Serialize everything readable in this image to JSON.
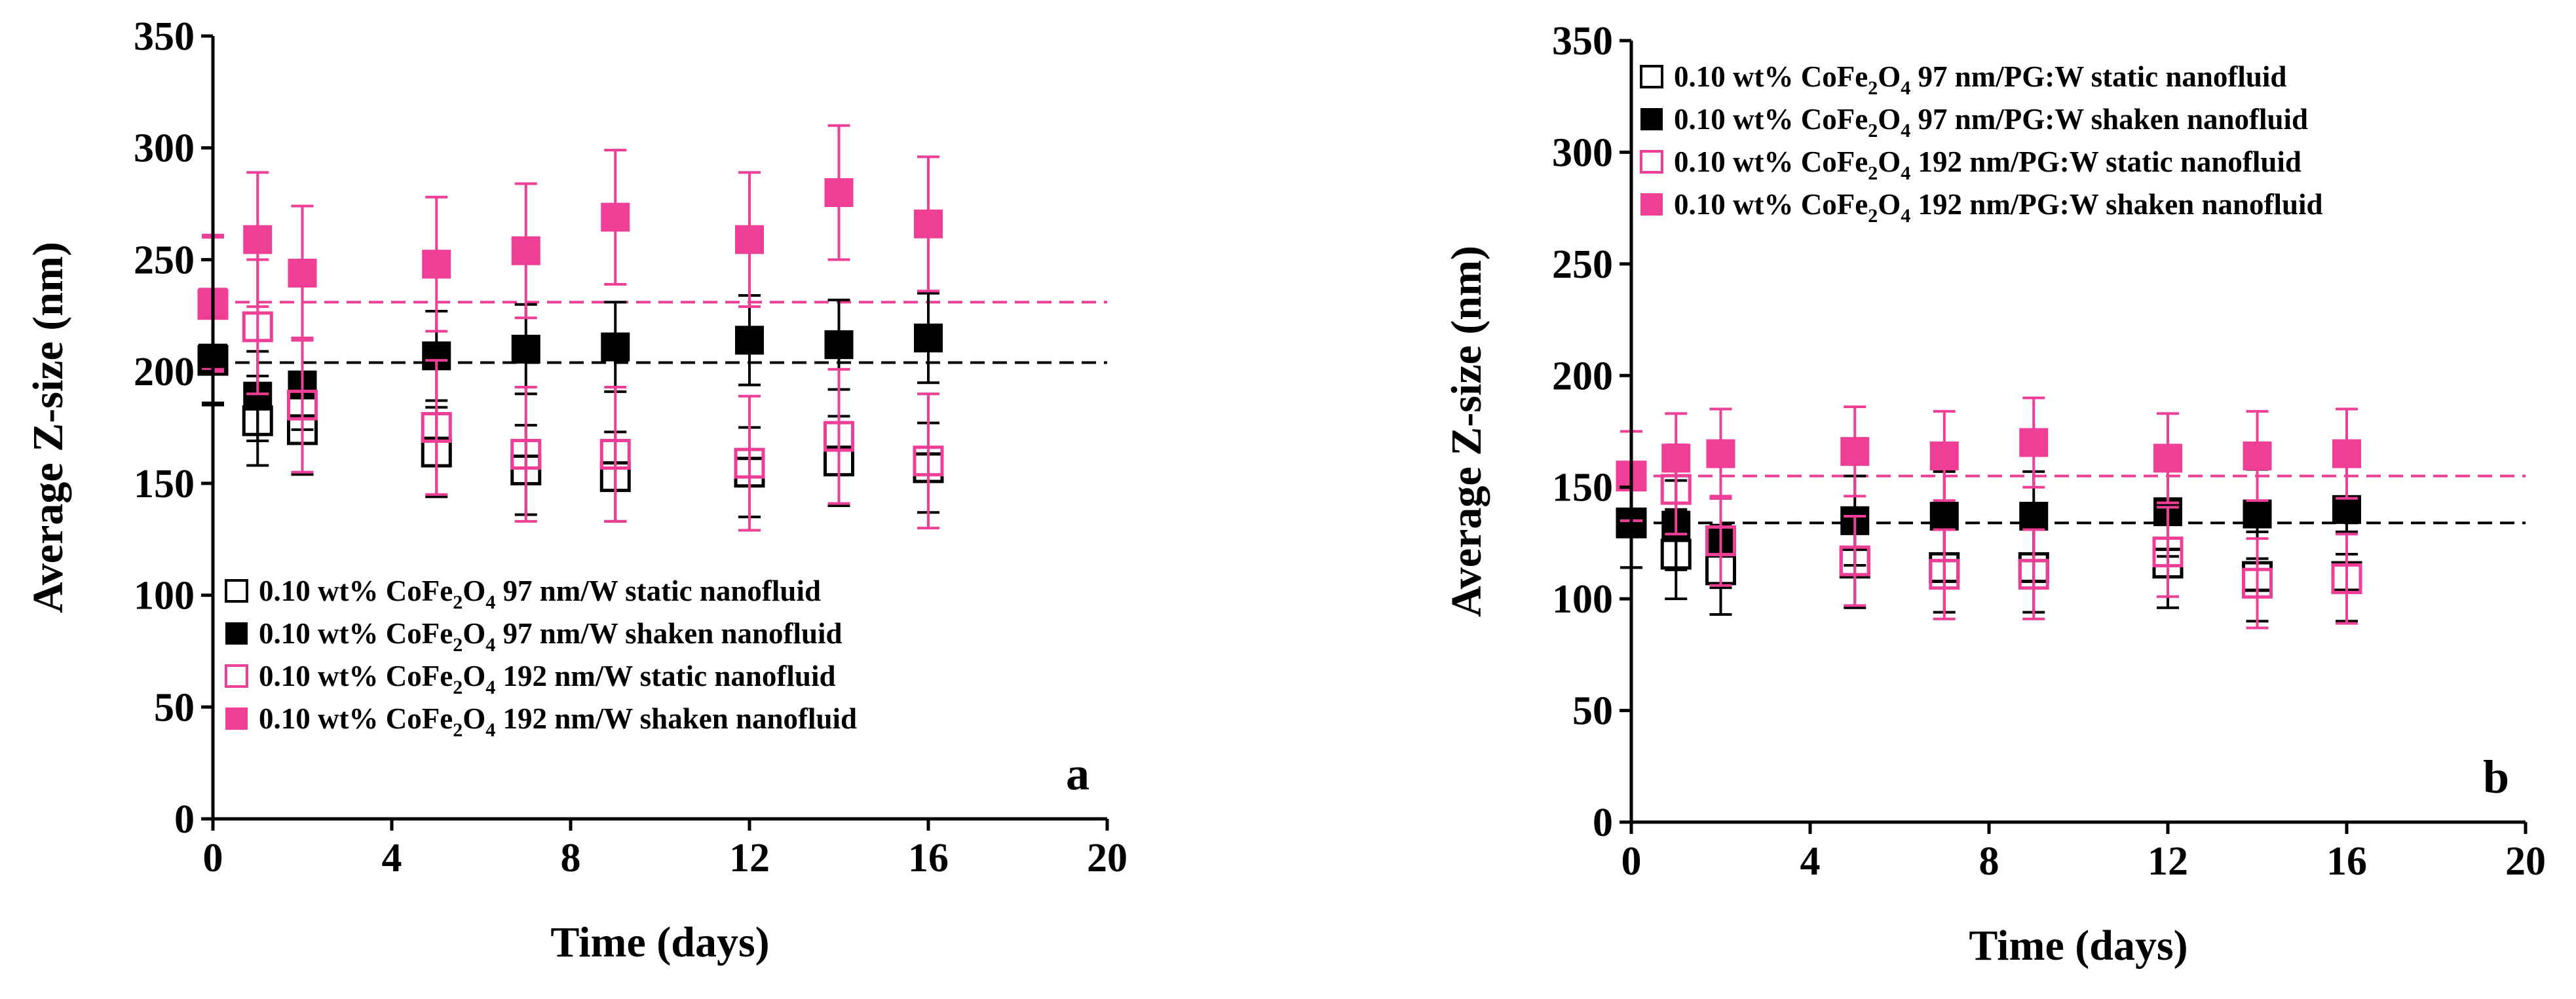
{
  "chart_data": [
    {
      "type": "scatter",
      "panel_label": "a",
      "xlabel": "Time (days)",
      "ylabel": "Average Z-size (nm)",
      "xlim": [
        0,
        20
      ],
      "ylim": [
        0,
        350
      ],
      "xticks": [
        0,
        4,
        8,
        12,
        16,
        20
      ],
      "yticks": [
        0,
        50,
        100,
        150,
        200,
        250,
        300,
        350
      ],
      "xtick_labels": [
        "0",
        "4",
        "8",
        "12",
        "16",
        "20"
      ],
      "ytick_labels": [
        "0",
        "50",
        "100",
        "150",
        "200",
        "250",
        "300",
        "350"
      ],
      "legend_position": "bottom-left",
      "reference_lines": [
        {
          "y": 204,
          "color": "#000000",
          "style": "dashed"
        },
        {
          "y": 231,
          "color": "#ee3e96",
          "style": "dashed"
        }
      ],
      "series": [
        {
          "name": "0.10 wt% CoFe2O4 97 nm/W static nanofluid",
          "legend": {
            "pre": "0.10 wt% CoFe",
            "sub1": "2",
            "mid": "O",
            "sub2": "4",
            "post": " 97 nm/W static nanofluid"
          },
          "color": "#000000",
          "marker": "open-square",
          "x": [
            0,
            1,
            2,
            5,
            7,
            9,
            12,
            14,
            16
          ],
          "y": [
            205,
            178,
            174,
            164,
            156,
            153,
            155,
            160,
            157
          ],
          "err": [
            20,
            20,
            20,
            20,
            20,
            20,
            20,
            20,
            20
          ]
        },
        {
          "name": "0.10 wt% CoFe2O4 97 nm/W shaken nanofluid",
          "legend": {
            "pre": "0.10 wt% CoFe",
            "sub1": "2",
            "mid": "O",
            "sub2": "4",
            "post": " 97 nm/W shaken nanofluid"
          },
          "color": "#000000",
          "marker": "filled-square",
          "x": [
            0,
            1,
            2,
            5,
            7,
            9,
            12,
            14,
            16
          ],
          "y": [
            206,
            189,
            194,
            207,
            210,
            211,
            214,
            212,
            215
          ],
          "err": [
            20,
            20,
            20,
            20,
            20,
            20,
            20,
            20,
            20
          ]
        },
        {
          "name": "0.10 wt% CoFe2O4 192 nm/W static nanofluid",
          "legend": {
            "pre": "0.10 wt% CoFe",
            "sub1": "2",
            "mid": "O",
            "sub2": "4",
            "post": " 192 nm/W static nanofluid"
          },
          "color": "#ee3e96",
          "marker": "open-square",
          "x": [
            0,
            1,
            2,
            5,
            7,
            9,
            12,
            14,
            16
          ],
          "y": [
            230,
            220,
            185,
            175,
            163,
            163,
            159,
            171,
            160
          ],
          "err": [
            30,
            30,
            30,
            30,
            30,
            30,
            30,
            30,
            30
          ]
        },
        {
          "name": "0.10 wt% CoFe2O4 192 nm/W shaken nanofluid",
          "legend": {
            "pre": "0.10 wt% CoFe",
            "sub1": "2",
            "mid": "O",
            "sub2": "4",
            "post": " 192 nm/W shaken nanofluid"
          },
          "color": "#ee3e96",
          "marker": "filled-square",
          "x": [
            0,
            1,
            2,
            5,
            7,
            9,
            12,
            14,
            16
          ],
          "y": [
            231,
            259,
            244,
            248,
            254,
            269,
            259,
            280,
            266
          ],
          "err": [
            30,
            30,
            30,
            30,
            30,
            30,
            30,
            30,
            30
          ]
        }
      ]
    },
    {
      "type": "scatter",
      "panel_label": "b",
      "xlabel": "Time (days)",
      "ylabel": "Average Z-size (nm)",
      "xlim": [
        0,
        20
      ],
      "ylim": [
        0,
        350
      ],
      "xticks": [
        0,
        4,
        8,
        12,
        16,
        20
      ],
      "yticks": [
        0,
        50,
        100,
        150,
        200,
        250,
        300,
        350
      ],
      "xtick_labels": [
        "0",
        "4",
        "8",
        "12",
        "16",
        "20"
      ],
      "ytick_labels": [
        "0",
        "50",
        "100",
        "150",
        "200",
        "250",
        "300",
        "350"
      ],
      "legend_position": "top-left",
      "reference_lines": [
        {
          "y": 134,
          "color": "#000000",
          "style": "dashed"
        },
        {
          "y": 155,
          "color": "#ee3e96",
          "style": "dashed"
        }
      ],
      "series": [
        {
          "name": "0.10 wt% CoFe2O4 97 nm/PG:W static nanofluid",
          "legend": {
            "pre": "0.10 wt% CoFe",
            "sub1": "2",
            "mid": "O",
            "sub2": "4",
            "post": " 97 nm/PG:W static nanofluid"
          },
          "color": "#000000",
          "marker": "open-square",
          "x": [
            0,
            1,
            2,
            5,
            7,
            9,
            12,
            14,
            16
          ],
          "y": [
            134,
            120,
            113,
            116,
            114,
            114,
            116,
            110,
            110
          ],
          "err": [
            20,
            20,
            20,
            20,
            20,
            20,
            20,
            20,
            20
          ]
        },
        {
          "name": "0.10 wt% CoFe2O4 97 nm/PG:W shaken nanofluid",
          "legend": {
            "pre": "0.10 wt% CoFe",
            "sub1": "2",
            "mid": "O",
            "sub2": "4",
            "post": " 97 nm/PG:W shaken nanofluid"
          },
          "color": "#000000",
          "marker": "filled-square",
          "x": [
            0,
            1,
            2,
            5,
            7,
            9,
            12,
            14,
            16
          ],
          "y": [
            134,
            133,
            125,
            135,
            137,
            137,
            139,
            138,
            140
          ],
          "err": [
            20,
            20,
            20,
            20,
            20,
            20,
            20,
            20,
            20
          ]
        },
        {
          "name": "0.10 wt% CoFe2O4 192 nm/PG:W static nanofluid",
          "legend": {
            "pre": "0.10 wt% CoFe",
            "sub1": "2",
            "mid": "O",
            "sub2": "4",
            "post": " 192 nm/PG:W static nanofluid"
          },
          "color": "#ee3e96",
          "marker": "open-square",
          "x": [
            0,
            1,
            2,
            5,
            7,
            9,
            12,
            14,
            16
          ],
          "y": [
            155,
            149,
            126,
            117,
            111,
            111,
            121,
            107,
            109
          ],
          "err": [
            20,
            20,
            20,
            20,
            20,
            20,
            20,
            20,
            20
          ]
        },
        {
          "name": "0.10 wt% CoFe2O4 192 nm/PG:W shaken nanofluid",
          "legend": {
            "pre": "0.10 wt% CoFe",
            "sub1": "2",
            "mid": "O",
            "sub2": "4",
            "post": " 192 nm/PG:W shaken nanofluid"
          },
          "color": "#ee3e96",
          "marker": "filled-square",
          "x": [
            0,
            1,
            2,
            5,
            7,
            9,
            12,
            14,
            16
          ],
          "y": [
            155,
            163,
            165,
            166,
            164,
            170,
            163,
            164,
            165
          ],
          "err": [
            20,
            20,
            20,
            20,
            20,
            20,
            20,
            20,
            20
          ]
        }
      ]
    }
  ]
}
